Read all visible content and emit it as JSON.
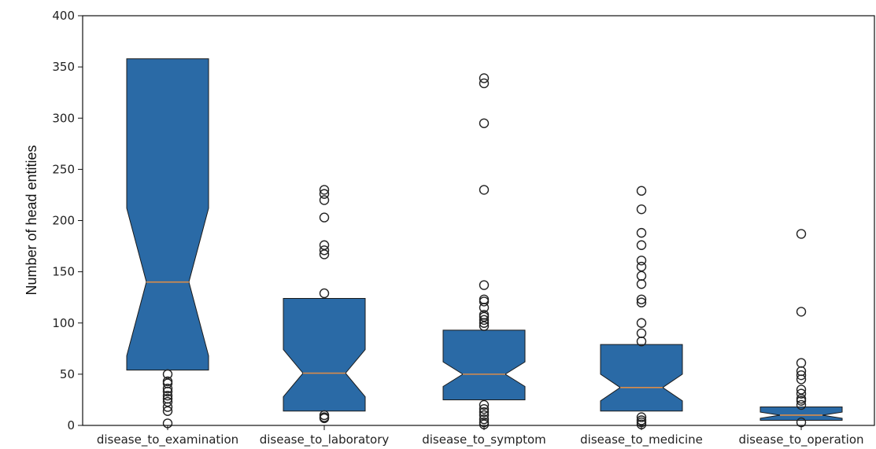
{
  "chart_data": {
    "type": "boxplot",
    "title": "",
    "xlabel": "",
    "ylabel": "Number of head entities",
    "ylim": [
      0,
      400
    ],
    "yticks": [
      0,
      50,
      100,
      150,
      200,
      250,
      300,
      350,
      400
    ],
    "notched": true,
    "grid": false,
    "colors": {
      "box": "#2a6aa6",
      "median": "#d98c4a",
      "edge": "#1a1a1a"
    },
    "categories": [
      "disease_to_examination",
      "disease_to_laboratory",
      "disease_to_symptom",
      "disease_to_medicine",
      "disease_to_operation"
    ],
    "boxes": [
      {
        "q1": 54,
        "median": 140,
        "q3": 358,
        "notch_low": 68,
        "notch_high": 212,
        "outliers": [
          50,
          43,
          41,
          36,
          33,
          29,
          26,
          23,
          18,
          14,
          2
        ]
      },
      {
        "q1": 14,
        "median": 51,
        "q3": 124,
        "notch_low": 28,
        "notch_high": 74,
        "outliers": [
          230,
          226,
          220,
          203,
          176,
          171,
          167,
          129,
          10,
          8,
          7
        ]
      },
      {
        "q1": 25,
        "median": 50,
        "q3": 93,
        "notch_low": 38,
        "notch_high": 62,
        "outliers": [
          339,
          334,
          295,
          230,
          137,
          123,
          121,
          115,
          108,
          106,
          103,
          100,
          97,
          20,
          16,
          13,
          10,
          6,
          3,
          1
        ]
      },
      {
        "q1": 14,
        "median": 37,
        "q3": 79,
        "notch_low": 24,
        "notch_high": 50,
        "outliers": [
          229,
          211,
          188,
          176,
          161,
          155,
          146,
          138,
          123,
          120,
          100,
          90,
          82,
          8,
          5,
          3,
          1
        ]
      },
      {
        "q1": 5,
        "median": 10,
        "q3": 18,
        "notch_low": 7,
        "notch_high": 13,
        "outliers": [
          187,
          111,
          61,
          53,
          49,
          45,
          35,
          31,
          26,
          24,
          20,
          3
        ]
      }
    ]
  }
}
